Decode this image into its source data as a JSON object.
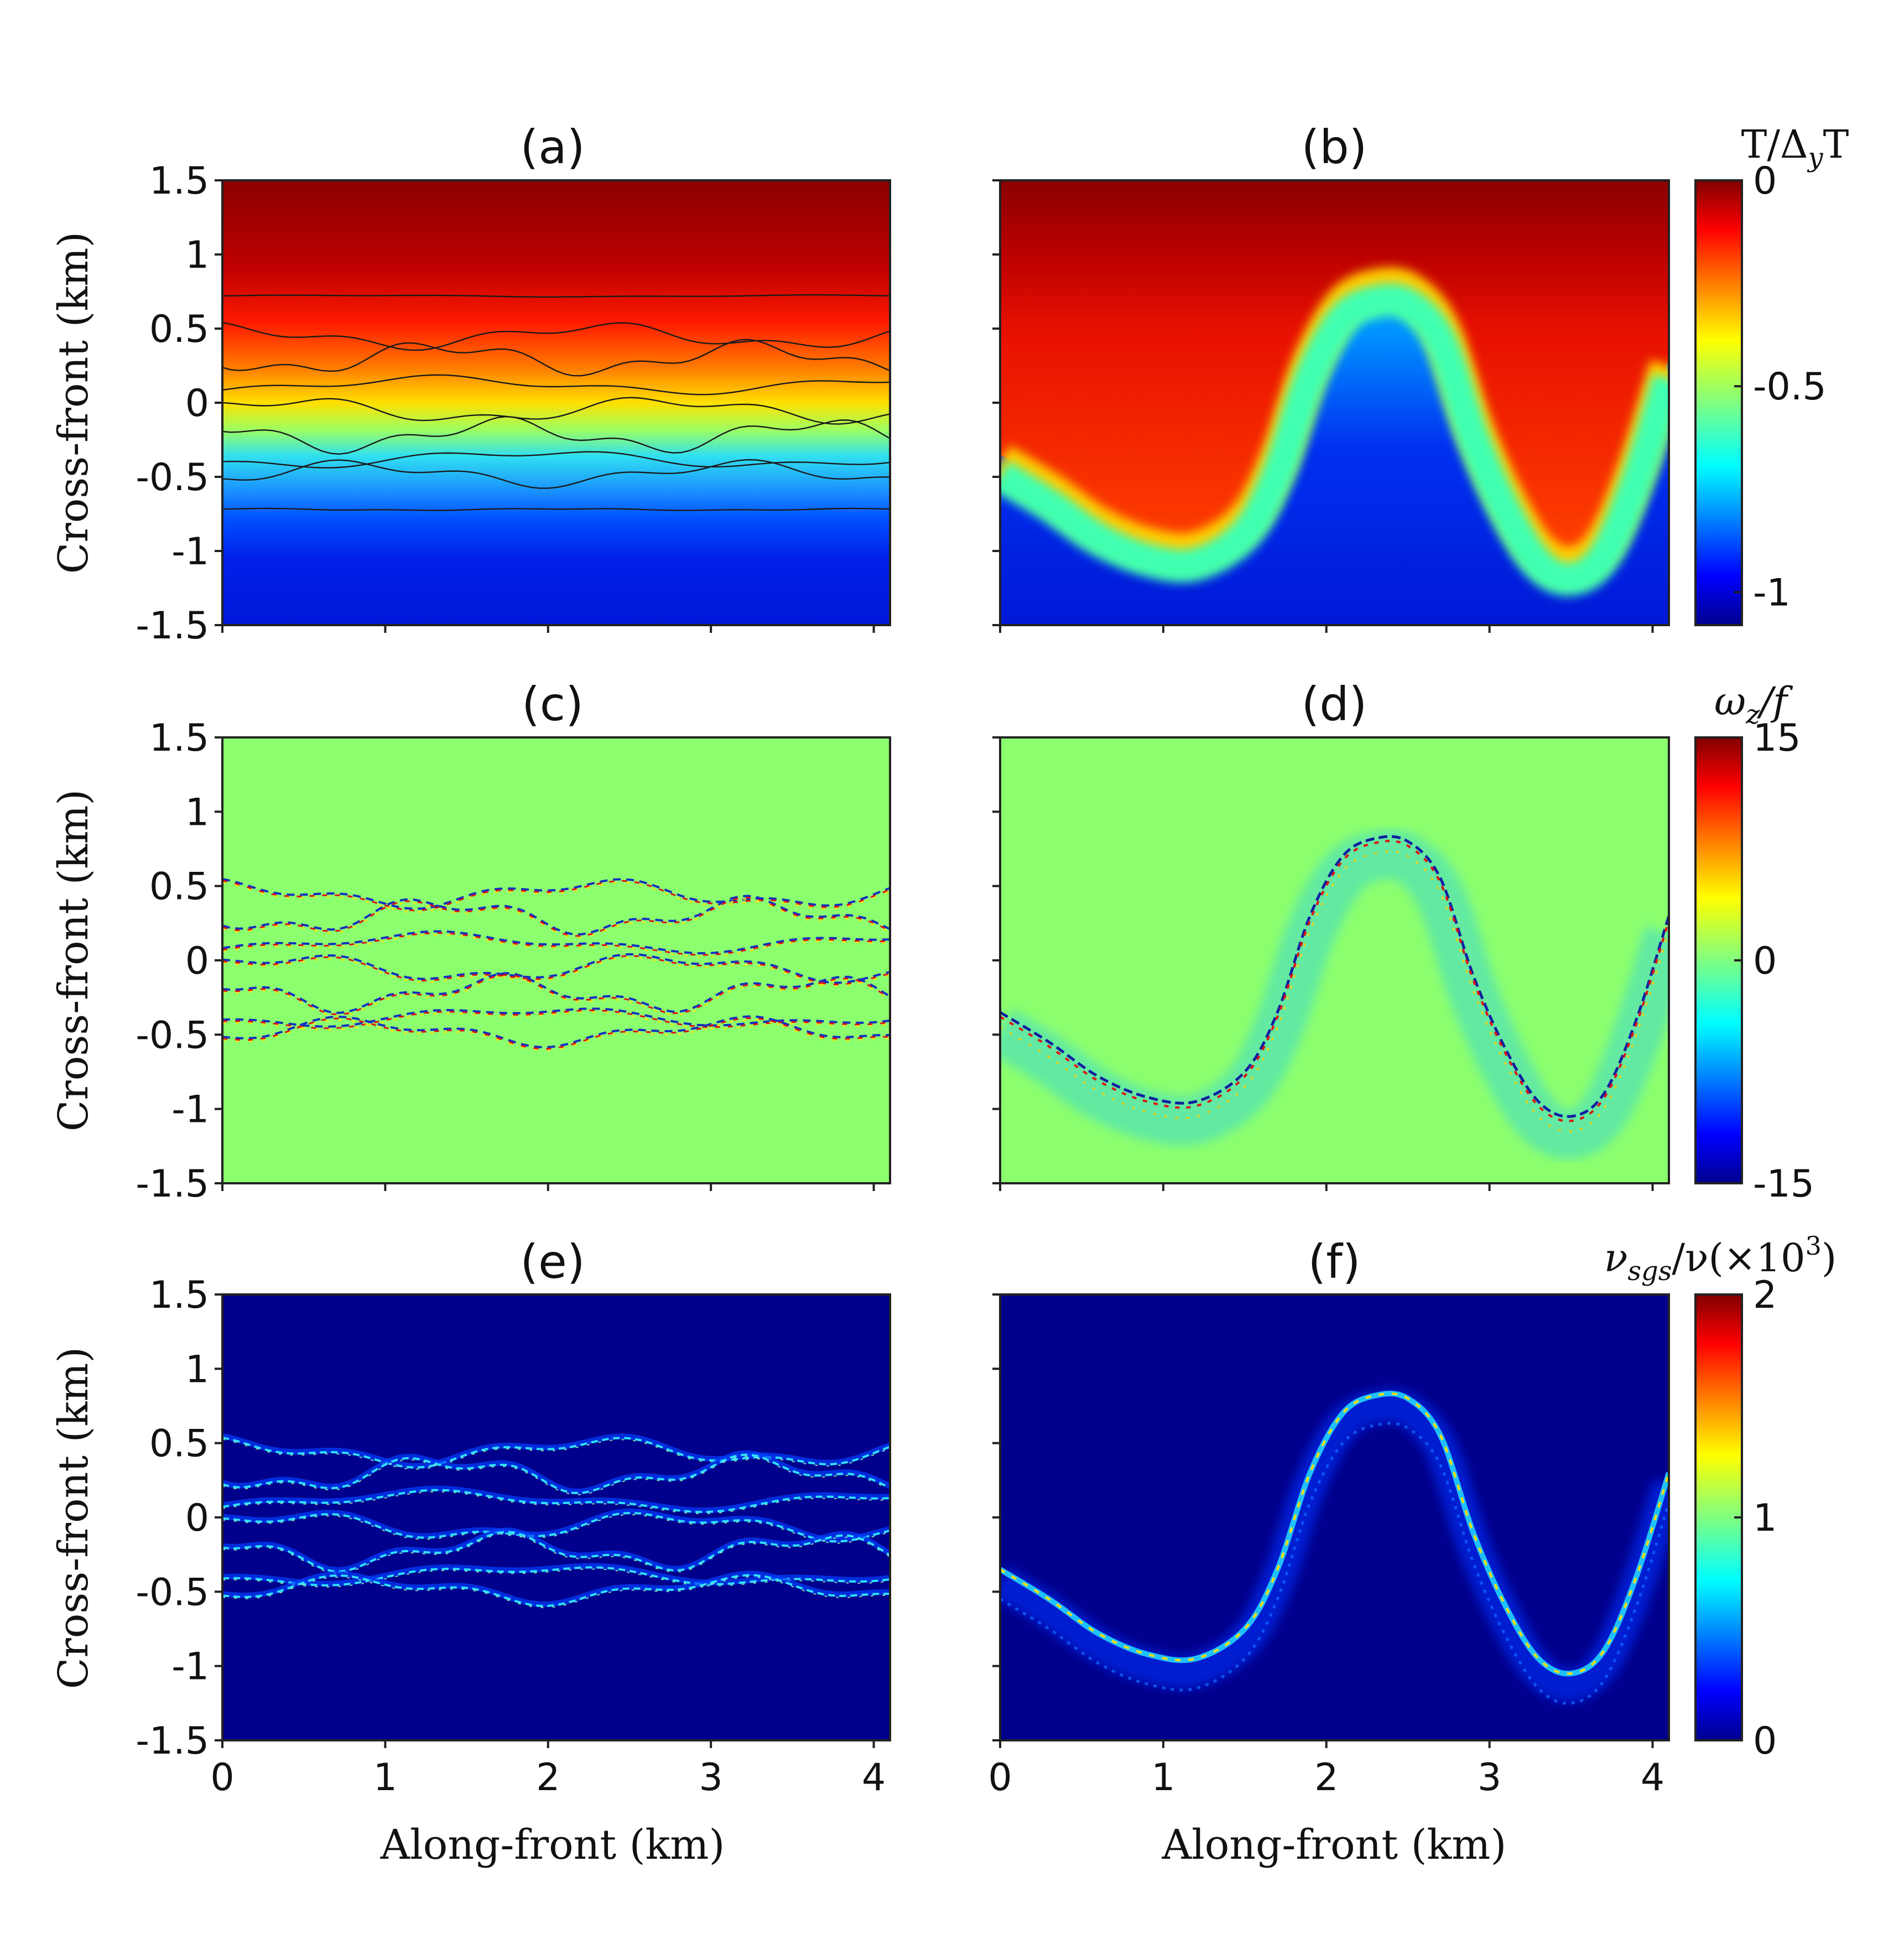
{
  "chart_data": {
    "type": "heatmap",
    "layout": "3 rows x 2 columns",
    "colormap": "jet",
    "panels": [
      {
        "id": "a",
        "title": "(a)",
        "row": 1,
        "col": 1,
        "field": "temperature",
        "contours": true,
        "pattern": "layered"
      },
      {
        "id": "b",
        "title": "(b)",
        "row": 1,
        "col": 2,
        "field": "temperature",
        "contours": false,
        "pattern": "wave"
      },
      {
        "id": "c",
        "title": "(c)",
        "row": 2,
        "col": 1,
        "field": "vorticity",
        "contours": false,
        "pattern": "layered"
      },
      {
        "id": "d",
        "title": "(d)",
        "row": 2,
        "col": 2,
        "field": "vorticity",
        "contours": false,
        "pattern": "wave"
      },
      {
        "id": "e",
        "title": "(e)",
        "row": 3,
        "col": 1,
        "field": "viscosity",
        "contours": false,
        "pattern": "layered"
      },
      {
        "id": "f",
        "title": "(f)",
        "row": 3,
        "col": 2,
        "field": "viscosity",
        "contours": false,
        "pattern": "wave"
      }
    ],
    "xlabel": "Along-front (km)",
    "ylabel": "Cross-front (km)",
    "xlim": [
      0,
      4.1
    ],
    "ylim": [
      -1.5,
      1.5
    ],
    "xticks": [
      "0",
      "1",
      "2",
      "3",
      "4"
    ],
    "xtick_values": [
      0,
      1,
      2,
      3,
      4
    ],
    "yticks": [
      "1.5",
      "1",
      "0.5",
      "0",
      "-0.5",
      "-1",
      "-1.5"
    ],
    "ytick_values": [
      1.5,
      1,
      0.5,
      0,
      -0.5,
      -1,
      -1.5
    ],
    "colorbars": [
      {
        "row": 1,
        "label": "T/ΔyT",
        "label_main": "T/Δ",
        "label_sub": "y",
        "label_tail": "T",
        "ticks": [
          "0",
          "-0.5",
          "-1"
        ],
        "tick_values": [
          0,
          -0.5,
          -1
        ],
        "clim": [
          -1.08,
          0
        ]
      },
      {
        "row": 2,
        "label": "ωz/f",
        "label_main": "ω",
        "label_sub": "z",
        "label_tail": "/f",
        "ticks": [
          "15",
          "0",
          "-15"
        ],
        "tick_values": [
          15,
          0,
          -15
        ],
        "clim": [
          -15,
          15
        ]
      },
      {
        "row": 3,
        "label": "νsgs/ν(×10³)",
        "label_main": "ν",
        "label_sub": "sgs",
        "label_tail": "/ν(×10",
        "label_sup": "3",
        "label_end": ")",
        "ticks": [
          "2",
          "1",
          "0"
        ],
        "tick_values": [
          2,
          1,
          0
        ],
        "clim": [
          0,
          2
        ]
      }
    ],
    "wave_interface": {
      "x": [
        0,
        0.3,
        0.6,
        0.9,
        1.2,
        1.5,
        1.7,
        1.9,
        2.1,
        2.3,
        2.5,
        2.7,
        2.9,
        3.1,
        3.3,
        3.5,
        3.7,
        3.9,
        4.1
      ],
      "y": [
        -0.35,
        -0.55,
        -0.78,
        -0.92,
        -0.95,
        -0.75,
        -0.35,
        0.3,
        0.7,
        0.82,
        0.8,
        0.55,
        -0.1,
        -0.6,
        -0.95,
        -1.05,
        -0.9,
        -0.4,
        0.3
      ]
    },
    "layered_interfaces_y": [
      0.72,
      0.45,
      0.3,
      0.12,
      -0.05,
      -0.22,
      -0.38,
      -0.48,
      -0.72
    ]
  }
}
